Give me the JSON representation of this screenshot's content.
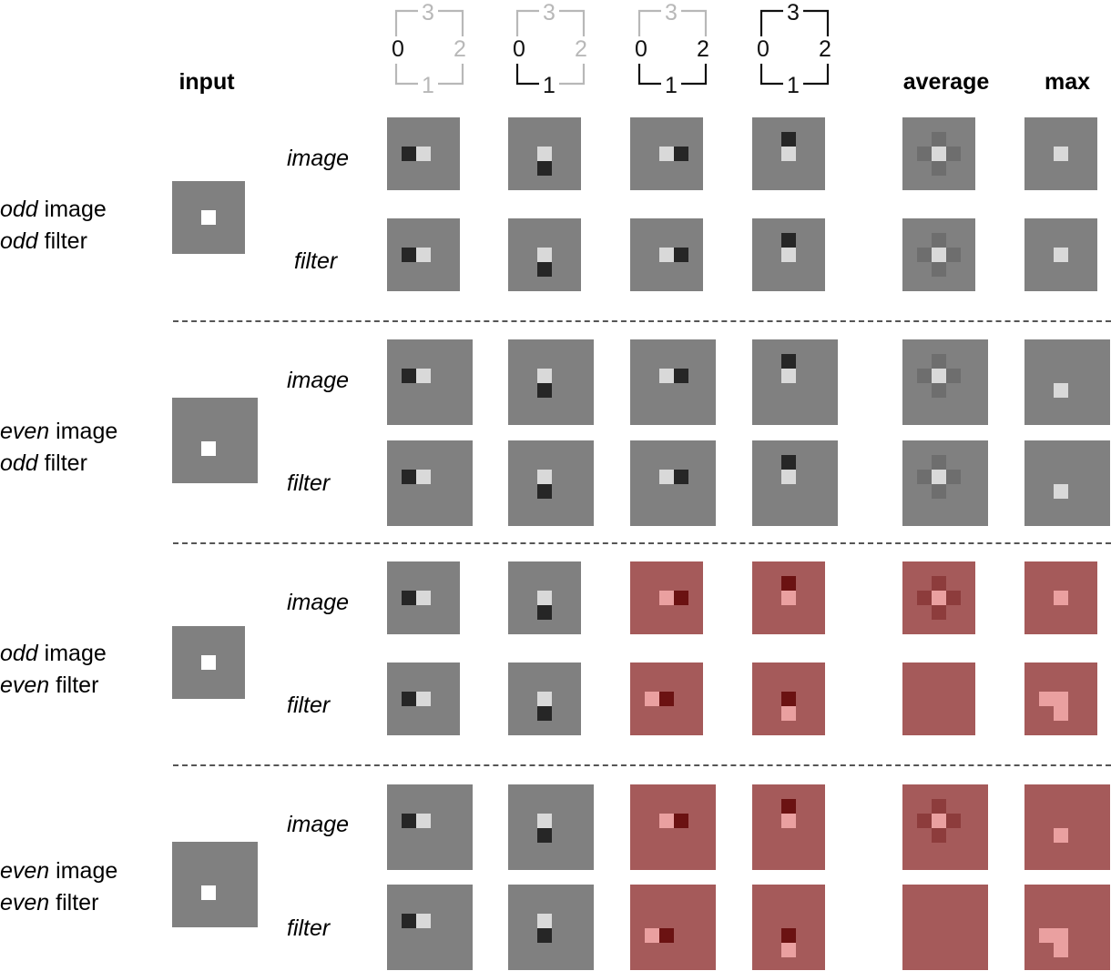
{
  "headers": {
    "input": "input",
    "average": "average",
    "max": "max"
  },
  "rotation_icons": [
    {
      "labels": [
        "0",
        "1",
        "2",
        "3"
      ],
      "dark": [
        "0"
      ]
    },
    {
      "labels": [
        "0",
        "1",
        "2",
        "3"
      ],
      "dark": [
        "0",
        "1"
      ]
    },
    {
      "labels": [
        "0",
        "1",
        "2",
        "3"
      ],
      "dark": [
        "0",
        "1",
        "2"
      ]
    },
    {
      "labels": [
        "0",
        "1",
        "2",
        "3"
      ],
      "dark": [
        "0",
        "1",
        "2",
        "3"
      ]
    }
  ],
  "sub_labels": {
    "image": "image",
    "filter": "filter"
  },
  "groups": [
    {
      "image_parity": "odd",
      "image_word": "image",
      "filter_parity": "odd",
      "filter_word": "filter"
    },
    {
      "image_parity": "even",
      "image_word": "image",
      "filter_parity": "odd",
      "filter_word": "filter"
    },
    {
      "image_parity": "odd",
      "image_word": "image",
      "filter_parity": "even",
      "filter_word": "filter"
    },
    {
      "image_parity": "even",
      "image_word": "image",
      "filter_parity": "even",
      "filter_word": "filter"
    }
  ],
  "colors": {
    "gray_bg": "#808080",
    "red_bg": "#a55a5a",
    "white": "#ffffff",
    "light": "#d9d9d9",
    "dark": "#262626",
    "avg_mid": "#6e6e6e",
    "red_light": "#eaa0a0",
    "red_dark": "#6b1212",
    "red_mid": "#8d3c3c",
    "divider": "#555555"
  }
}
